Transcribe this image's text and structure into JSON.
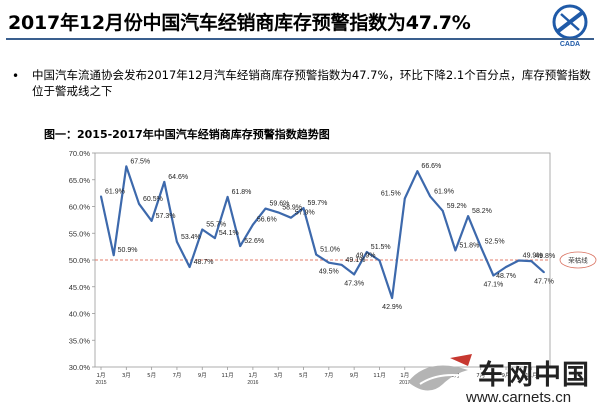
{
  "header": {
    "title": "2017年12月份中国汽车经销商库存预警指数为47.7%",
    "logo_icon": "cada-logo-icon",
    "bullet": "中国汽车流通协会发布2017年12月汽车经销商库存预警指数为47.7%，环比下降2.1个百分点，库存预警指数位于警戒线之下"
  },
  "watermark": {
    "name": "车网中国",
    "url": "www.carnets.cn"
  },
  "chart_data": {
    "type": "line",
    "title": "图一：2015-2017年中国汽车经销商库存预警指数趋势图",
    "xlabel": "",
    "ylabel": "",
    "ylim": [
      30,
      70
    ],
    "yticks": [
      "30.0%",
      "35.0%",
      "40.0%",
      "45.0%",
      "50.0%",
      "55.0%",
      "60.0%",
      "65.0%",
      "70.0%"
    ],
    "x": [
      "2015-01",
      "2015-02",
      "2015-03",
      "2015-04",
      "2015-05",
      "2015-06",
      "2015-07",
      "2015-08",
      "2015-09",
      "2015-10",
      "2015-11",
      "2015-12",
      "2016-01",
      "2016-02",
      "2016-03",
      "2016-04",
      "2016-05",
      "2016-06",
      "2016-07",
      "2016-08",
      "2016-09",
      "2016-10",
      "2016-11",
      "2016-12",
      "2017-01",
      "2017-02",
      "2017-03",
      "2017-04",
      "2017-05",
      "2017-06",
      "2017-07",
      "2017-08",
      "2017-09",
      "2017-10",
      "2017-11",
      "2017-12"
    ],
    "xtick_labels": [
      {
        "i": 0,
        "label": "1月",
        "year": "2015"
      },
      {
        "i": 2,
        "label": "3月"
      },
      {
        "i": 4,
        "label": "5月"
      },
      {
        "i": 6,
        "label": "7月"
      },
      {
        "i": 8,
        "label": "9月"
      },
      {
        "i": 10,
        "label": "11月"
      },
      {
        "i": 12,
        "label": "1月",
        "year": "2016"
      },
      {
        "i": 14,
        "label": "3月"
      },
      {
        "i": 16,
        "label": "5月"
      },
      {
        "i": 18,
        "label": "7月"
      },
      {
        "i": 20,
        "label": "9月"
      },
      {
        "i": 22,
        "label": "11月"
      },
      {
        "i": 24,
        "label": "1月",
        "year": "2017"
      },
      {
        "i": 26,
        "label": "3月"
      },
      {
        "i": 28,
        "label": "5月"
      },
      {
        "i": 30,
        "label": "7月"
      },
      {
        "i": 32,
        "label": "9月"
      },
      {
        "i": 34,
        "label": "11月"
      }
    ],
    "series": [
      {
        "values": [
          61.9,
          50.9,
          67.5,
          60.5,
          57.3,
          64.6,
          53.4,
          48.7,
          55.7,
          54.1,
          61.8,
          52.6,
          56.6,
          59.6,
          58.9,
          57.9,
          59.7,
          51.0,
          49.5,
          49.1,
          47.3,
          51.5,
          49.9,
          42.9,
          61.5,
          66.6,
          61.9,
          59.2,
          51.8,
          58.2,
          52.5,
          47.1,
          48.7,
          49.9,
          49.8,
          47.7
        ],
        "color": "#3d69ac"
      }
    ],
    "data_labels": [
      {
        "i": 0,
        "text": "61.9%",
        "pos": "r"
      },
      {
        "i": 1,
        "text": "50.9%",
        "pos": "r"
      },
      {
        "i": 2,
        "text": "67.5%",
        "pos": "r"
      },
      {
        "i": 3,
        "text": "60.5%",
        "pos": "r"
      },
      {
        "i": 4,
        "text": "57.3%",
        "pos": "r"
      },
      {
        "i": 5,
        "text": "64.6%",
        "pos": "r"
      },
      {
        "i": 6,
        "text": "53.4%",
        "pos": "r"
      },
      {
        "i": 7,
        "text": "48.7%",
        "pos": "r"
      },
      {
        "i": 8,
        "text": "55.7%",
        "pos": "r"
      },
      {
        "i": 9,
        "text": "54.1%",
        "pos": "r"
      },
      {
        "i": 10,
        "text": "61.8%",
        "pos": "r"
      },
      {
        "i": 11,
        "text": "52.6%",
        "pos": "r"
      },
      {
        "i": 12,
        "text": "56.6%",
        "pos": "r"
      },
      {
        "i": 13,
        "text": "59.6%",
        "pos": "r"
      },
      {
        "i": 14,
        "text": "58.9%",
        "pos": "r"
      },
      {
        "i": 15,
        "text": "57.9%",
        "pos": "r"
      },
      {
        "i": 16,
        "text": "59.7%",
        "pos": "r"
      },
      {
        "i": 17,
        "text": "51.0%",
        "pos": "r"
      },
      {
        "i": 18,
        "text": "49.5%",
        "pos": "b"
      },
      {
        "i": 19,
        "text": "49.1%",
        "pos": "r"
      },
      {
        "i": 20,
        "text": "47.3%",
        "pos": "b"
      },
      {
        "i": 21,
        "text": "51.5%",
        "pos": "r"
      },
      {
        "i": 22,
        "text": "49.9%",
        "pos": "l"
      },
      {
        "i": 23,
        "text": "42.9%",
        "pos": "b"
      },
      {
        "i": 24,
        "text": "61.5%",
        "pos": "l"
      },
      {
        "i": 25,
        "text": "66.6%",
        "pos": "r"
      },
      {
        "i": 26,
        "text": "61.9%",
        "pos": "r"
      },
      {
        "i": 27,
        "text": "59.2%",
        "pos": "r"
      },
      {
        "i": 28,
        "text": "51.8%",
        "pos": "r"
      },
      {
        "i": 29,
        "text": "58.2%",
        "pos": "r"
      },
      {
        "i": 30,
        "text": "52.5%",
        "pos": "r"
      },
      {
        "i": 31,
        "text": "47.1%",
        "pos": "b"
      },
      {
        "i": 32,
        "text": "48.7%",
        "pos": "b"
      },
      {
        "i": 33,
        "text": "49.9%",
        "pos": "r"
      },
      {
        "i": 34,
        "text": "49.8%",
        "pos": "r"
      },
      {
        "i": 35,
        "text": "47.7%",
        "pos": "b"
      }
    ],
    "warning_line": {
      "value": 50,
      "label": "荣枯线",
      "color": "#e07b6a"
    },
    "grid": false,
    "legend": "none"
  }
}
